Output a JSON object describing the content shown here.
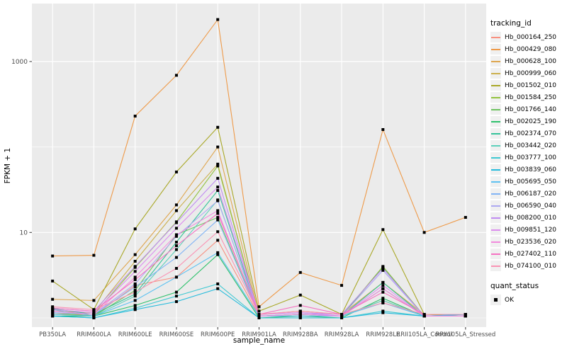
{
  "figure": {
    "background": "#FFFFFF",
    "panel_background": "#EBEBEB",
    "grid_major_color": "#FFFFFF",
    "grid_minor_color": "#FFFFFF",
    "tick_label_color": "#4D4D4D",
    "tick_mark_color": "#333333",
    "point_color": "#000000"
  },
  "axes": {
    "x_label": "sample_name",
    "y_label": "FPKM + 1",
    "y_tick_labels": [
      "10",
      "1000"
    ],
    "y_tick_values": [
      10,
      1000
    ],
    "y_minor_values": [
      1,
      100
    ]
  },
  "legend": {
    "tracking_title": "tracking_id",
    "quant_title": "quant_status",
    "quant_items": [
      {
        "label": "OK"
      }
    ]
  },
  "chart_data": {
    "type": "line",
    "title": "",
    "xlabel": "sample_name",
    "ylabel": "FPKM + 1",
    "y_scale": "log10",
    "ylim": [
      0.78,
      4400
    ],
    "grid": true,
    "legend_position": "right",
    "point_shape": "filled-square-black",
    "categories": [
      "PB350LA",
      "RRIM600LA",
      "RRIM600LE",
      "RRIM600SE",
      "RRIM600PE",
      "RRIM901LA",
      "RRIM928BA",
      "RRIM928LA",
      "RRIM928LE",
      "RRII105LA_Control",
      "RRII105LA_Stressed"
    ],
    "series": [
      {
        "name": "Hb_000164_250",
        "color": "#F89080",
        "values": [
          1.15,
          1.05,
          2.4,
          3.0,
          8.1,
          1.05,
          1.1,
          1.05,
          1.6,
          1.05,
          1.05
        ]
      },
      {
        "name": "Hb_000429_080",
        "color": "#EE9A49",
        "values": [
          5.3,
          5.4,
          230,
          690,
          3100,
          1.35,
          3.4,
          2.4,
          160,
          10,
          15
        ]
      },
      {
        "name": "Hb_000628_100",
        "color": "#DFA64F",
        "values": [
          1.65,
          1.6,
          5.5,
          21,
          100,
          1.1,
          1.2,
          1.1,
          2.6,
          1.1,
          1.1
        ]
      },
      {
        "name": "Hb_000999_060",
        "color": "#CCB04E",
        "values": [
          1.2,
          1.15,
          4.6,
          18,
          63,
          1.05,
          1.1,
          1.05,
          2.2,
          1.05,
          1.05
        ]
      },
      {
        "name": "Hb_001502_010",
        "color": "#A9A827",
        "values": [
          2.7,
          1.25,
          11,
          51,
          170,
          1.2,
          1.85,
          1.1,
          10.8,
          1.1,
          1.05
        ]
      },
      {
        "name": "Hb_001584_250",
        "color": "#93C23E",
        "values": [
          1.1,
          1.1,
          3.9,
          13.3,
          60,
          1.05,
          1.1,
          1.05,
          4.0,
          1.05,
          1.05
        ]
      },
      {
        "name": "Hb_001766_140",
        "color": "#6EC361",
        "values": [
          1.1,
          1.05,
          2.1,
          9.4,
          15,
          1.05,
          1.05,
          1.05,
          3.9,
          1.05,
          1.05
        ]
      },
      {
        "name": "Hb_002025_190",
        "color": "#2EC16C",
        "values": [
          1.05,
          1.05,
          1.4,
          2.0,
          5.5,
          1.0,
          1.05,
          1.0,
          1.7,
          1.05,
          1.05
        ]
      },
      {
        "name": "Hb_002374_070",
        "color": "#35C39A",
        "values": [
          1.28,
          1.1,
          1.9,
          7.7,
          31,
          1.05,
          1.1,
          1.05,
          2.6,
          1.05,
          1.05
        ]
      },
      {
        "name": "Hb_003442_020",
        "color": "#5ED0BB",
        "values": [
          1.25,
          1.05,
          1.8,
          6.3,
          24,
          1.05,
          1.05,
          1.05,
          1.6,
          1.05,
          1.05
        ]
      },
      {
        "name": "Hb_003777_100",
        "color": "#3FC9D2",
        "values": [
          1.05,
          1.0,
          1.3,
          1.8,
          2.5,
          1.0,
          1.0,
          1.0,
          1.2,
          1.05,
          1.1
        ]
      },
      {
        "name": "Hb_003839_060",
        "color": "#25BBDC",
        "values": [
          1.05,
          1.0,
          1.25,
          1.55,
          2.2,
          1.0,
          1.0,
          1.0,
          1.15,
          1.05,
          1.1
        ]
      },
      {
        "name": "Hb_005695_050",
        "color": "#5FC2F1",
        "values": [
          1.1,
          1.05,
          1.6,
          3.0,
          5.8,
          1.05,
          1.05,
          1.05,
          1.5,
          1.05,
          1.05
        ]
      },
      {
        "name": "Hb_006187_020",
        "color": "#82B4F5",
        "values": [
          1.15,
          1.1,
          2.3,
          5.1,
          14,
          1.05,
          1.1,
          1.05,
          2.2,
          1.05,
          1.05
        ]
      },
      {
        "name": "Hb_006590_040",
        "color": "#ADA9F2",
        "values": [
          1.2,
          1.1,
          2.5,
          9.0,
          23.5,
          1.1,
          1.15,
          1.05,
          3.6,
          1.05,
          1.05
        ]
      },
      {
        "name": "Hb_008200_010",
        "color": "#C08CF2",
        "values": [
          1.3,
          1.2,
          4.0,
          13,
          43,
          1.1,
          1.15,
          1.1,
          3.8,
          1.05,
          1.05
        ]
      },
      {
        "name": "Hb_009851_120",
        "color": "#DC8DEE",
        "values": [
          1.25,
          1.15,
          3.5,
          11.2,
          34,
          1.1,
          1.15,
          1.05,
          2.4,
          1.05,
          1.05
        ]
      },
      {
        "name": "Hb_023536_020",
        "color": "#F28BDE",
        "values": [
          1.2,
          1.1,
          3.0,
          9.4,
          18,
          1.05,
          1.1,
          1.05,
          2.2,
          1.05,
          1.05
        ]
      },
      {
        "name": "Hb_027402_110",
        "color": "#F672C2",
        "values": [
          1.3,
          1.2,
          2.8,
          7.0,
          16.7,
          1.1,
          1.4,
          1.1,
          2.0,
          1.1,
          1.1
        ]
      },
      {
        "name": "Hb_074100_010",
        "color": "#FA93B4",
        "values": [
          1.35,
          1.25,
          2.0,
          3.8,
          10.2,
          1.1,
          1.2,
          1.1,
          1.5,
          1.1,
          1.1
        ]
      }
    ]
  }
}
